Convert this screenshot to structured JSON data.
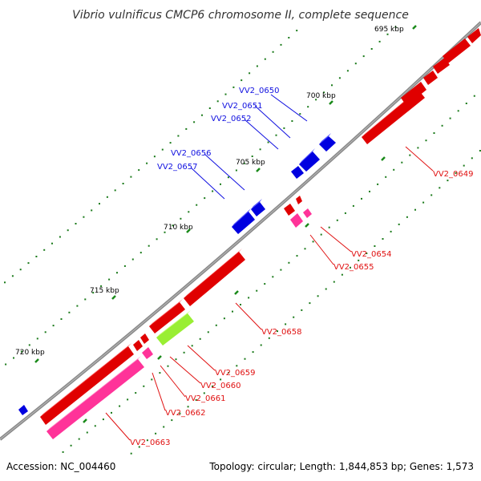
{
  "title": "Vibrio vulnificus CMCP6 chromosome II, complete sequence",
  "footer": {
    "accession": "Accession: NC_004460",
    "summary": "Topology: circular; Length: 1,844,853 bp; Genes: 1,573"
  },
  "colors": {
    "backbone": "#888888",
    "tick": "#1a7a1a",
    "forward_label": "#1010e0",
    "reverse_label": "#e01010",
    "gene_red": "#ff0000",
    "gene_blue": "#0000ff",
    "gene_pink": "#ff3399",
    "gene_green": "#99ee33"
  },
  "tick_labels": [
    "695 kbp",
    "700 kbp",
    "705 kbp",
    "710 kbp",
    "715 kbp",
    "720 kbp"
  ],
  "genes": [
    {
      "name": "VV2_0649",
      "strand": "reverse",
      "color": "gene_red"
    },
    {
      "name": "VV2_0650",
      "strand": "forward",
      "color": "gene_blue"
    },
    {
      "name": "VV2_0651",
      "strand": "forward",
      "color": "gene_blue"
    },
    {
      "name": "VV2_0652",
      "strand": "forward",
      "color": "gene_blue"
    },
    {
      "name": "VV2_0654",
      "strand": "reverse",
      "color": "gene_red"
    },
    {
      "name": "VV2_0655",
      "strand": "reverse",
      "color": "gene_pink"
    },
    {
      "name": "VV2_0656",
      "strand": "forward",
      "color": "gene_blue"
    },
    {
      "name": "VV2_0657",
      "strand": "forward",
      "color": "gene_blue"
    },
    {
      "name": "VV2_0658",
      "strand": "reverse",
      "color": "gene_red"
    },
    {
      "name": "VV2_0659",
      "strand": "reverse",
      "color": "gene_green"
    },
    {
      "name": "VV2_0660",
      "strand": "reverse",
      "color": "gene_red"
    },
    {
      "name": "VV2_0661",
      "strand": "reverse",
      "color": "gene_red"
    },
    {
      "name": "VV2_0662",
      "strand": "reverse",
      "color": "gene_pink"
    },
    {
      "name": "VV2_0663",
      "strand": "reverse",
      "color": "gene_pink"
    }
  ]
}
